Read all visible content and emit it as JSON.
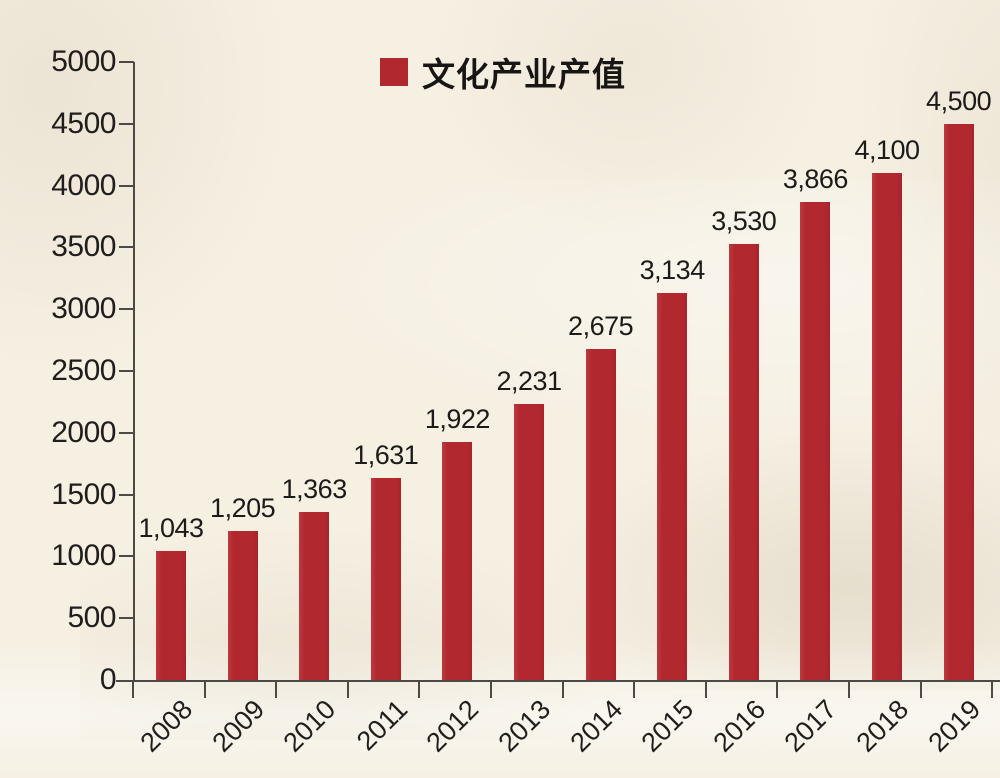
{
  "legend": {
    "label": "文化产业产值",
    "swatch_color": "#b2282f"
  },
  "chart_data": {
    "type": "bar",
    "title": "",
    "series_name": "文化产业产值",
    "categories": [
      "2008",
      "2009",
      "2010",
      "2011",
      "2012",
      "2013",
      "2014",
      "2015",
      "2016",
      "2017",
      "2018",
      "2019"
    ],
    "values": [
      1043,
      1205,
      1363,
      1631,
      1922,
      2231,
      2675,
      3134,
      3530,
      3866,
      4100,
      4500
    ],
    "value_labels": [
      "1,043",
      "1,205",
      "1,363",
      "1,631",
      "1,922",
      "2,231",
      "2,675",
      "3,134",
      "3,530",
      "3,866",
      "4,100",
      "4,500"
    ],
    "ylim": [
      0,
      5000
    ],
    "ytick_interval": 500,
    "yticks": [
      "0",
      "500",
      "1000",
      "1500",
      "2000",
      "2500",
      "3000",
      "3500",
      "4000",
      "4500",
      "5000"
    ],
    "bar_color": "#b2282f",
    "grid": false,
    "legend_position": "top-center",
    "x_label_rotation_deg": -45
  }
}
